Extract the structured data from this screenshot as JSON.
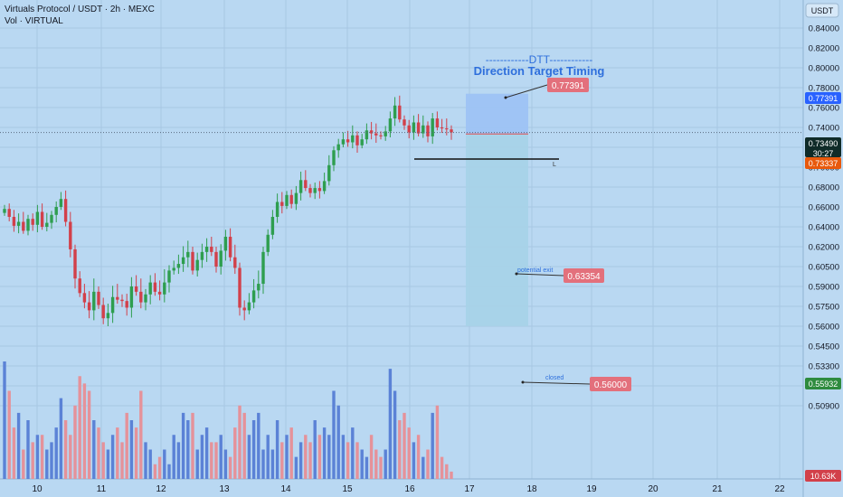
{
  "header": {
    "title": "Virtuals Protocol / USDT · 2h · MEXC",
    "volume_label": "Vol · VIRTUAL"
  },
  "currency_button": "USDT",
  "colors": {
    "background": "#b9d8f2",
    "bull_candle": "#2e9e4f",
    "bear_candle": "#d2404a",
    "bull_volume": "#5b82d6",
    "bear_volume": "#e5929a",
    "target_zone": "#9cc2f5",
    "stop_zone": "#a6d3e8",
    "label_red": "#e3707c",
    "annotation_blue": "#2e6fdc"
  },
  "annotations": {
    "dtt_title": "------------DTT------------",
    "dtt_subtitle": "Direction Target Timing",
    "target_label": "0.77391",
    "exit_text": "potential exit",
    "exit_label": "0.63354",
    "closed_text": "closed",
    "closed_label": "0.56000",
    "line_label": "L"
  },
  "price_tags": {
    "target": "0.77391",
    "current": "0.73490",
    "countdown": "30:27",
    "entry": "0.73337",
    "low": "0.55932",
    "volume": "10.63K"
  },
  "chart_data": {
    "type": "candlestick",
    "title": "Virtuals Protocol / USDT · 2h · MEXC",
    "y_axis_ticks": [
      "0.84000",
      "0.82000",
      "0.80000",
      "0.78000",
      "0.76000",
      "0.74000",
      "0.72000",
      "0.70000",
      "0.68000",
      "0.66000",
      "0.64000",
      "0.62000",
      "0.60500",
      "0.59000",
      "0.57500",
      "0.56000",
      "0.54500",
      "0.53300",
      "0.52100",
      "0.50900"
    ],
    "x_axis_ticks": [
      "10",
      "11",
      "12",
      "13",
      "14",
      "15",
      "16",
      "17",
      "18",
      "19",
      "20",
      "21",
      "22"
    ],
    "series": [
      {
        "name": "VIRTUAL/USDT",
        "close": [
          0.658,
          0.65,
          0.641,
          0.645,
          0.636,
          0.648,
          0.642,
          0.655,
          0.64,
          0.644,
          0.652,
          0.66,
          0.668,
          0.645,
          0.618,
          0.596,
          0.585,
          0.578,
          0.572,
          0.586,
          0.576,
          0.566,
          0.57,
          0.582,
          0.58,
          0.579,
          0.574,
          0.59,
          0.586,
          0.578,
          0.584,
          0.593,
          0.586,
          0.584,
          0.593,
          0.602,
          0.604,
          0.607,
          0.612,
          0.616,
          0.602,
          0.61,
          0.616,
          0.62,
          0.616,
          0.605,
          0.617,
          0.63,
          0.612,
          0.604,
          0.574,
          0.572,
          0.578,
          0.587,
          0.592,
          0.616,
          0.632,
          0.65,
          0.665,
          0.661,
          0.672,
          0.663,
          0.674,
          0.687,
          0.679,
          0.674,
          0.679,
          0.676,
          0.686,
          0.702,
          0.717,
          0.723,
          0.728,
          0.725,
          0.732,
          0.722,
          0.728,
          0.737,
          0.734,
          0.732,
          0.731,
          0.736,
          0.749,
          0.762,
          0.748,
          0.742,
          0.735,
          0.745,
          0.734,
          0.742,
          0.731,
          0.749,
          0.74,
          0.739,
          0.738,
          0.735
        ],
        "volume": [
          16000,
          12000,
          7000,
          9000,
          4000,
          8000,
          5000,
          6000,
          6000,
          4000,
          5000,
          7000,
          11000,
          8000,
          6000,
          10000,
          14000,
          13000,
          12000,
          8000,
          7000,
          5000,
          4000,
          6000,
          7000,
          5000,
          9000,
          8000,
          7000,
          12000,
          5000,
          4000,
          2000,
          3000,
          4000,
          2000,
          6000,
          5000,
          9000,
          8000,
          9000,
          4000,
          6000,
          7000,
          5000,
          5000,
          6000,
          4000,
          3000,
          7000,
          10000,
          9000,
          6000,
          8000,
          9000,
          4000,
          6000,
          4000,
          8000,
          5000,
          6000,
          7000,
          3000,
          5000,
          6000,
          5000,
          8000,
          6000,
          7000,
          6000,
          12000,
          10000,
          6000,
          5000,
          7000,
          5000,
          4000,
          3000,
          6000,
          4000,
          3000,
          4000,
          15000,
          12000,
          8000,
          9000,
          7000,
          5000,
          6000,
          3000,
          4000,
          9000,
          10000,
          3000,
          2000,
          1000
        ]
      }
    ],
    "forecast_box": {
      "entry": 0.73337,
      "target": 0.77391,
      "potential_exit": 0.63354,
      "stop": 0.56
    }
  }
}
